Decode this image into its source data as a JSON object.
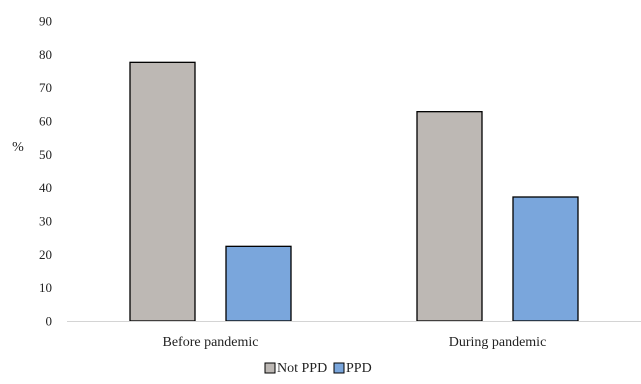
{
  "chart_data": {
    "type": "bar",
    "categories": [
      "Before pandemic",
      "During pandemic"
    ],
    "series": [
      {
        "name": "Not PPD",
        "values": [
          77.6,
          62.8
        ],
        "color": "#bdb8b4"
      },
      {
        "name": "PPD",
        "values": [
          22.4,
          37.2
        ],
        "color": "#7aa6dc"
      }
    ],
    "title": "",
    "xlabel": "",
    "ylabel": "%",
    "ylim": [
      0,
      90
    ],
    "yticks": [
      0,
      10,
      20,
      30,
      40,
      50,
      60,
      70,
      80,
      90
    ],
    "grid": false,
    "legend_position": "bottom-center",
    "bar_outline_color": "#000000"
  }
}
